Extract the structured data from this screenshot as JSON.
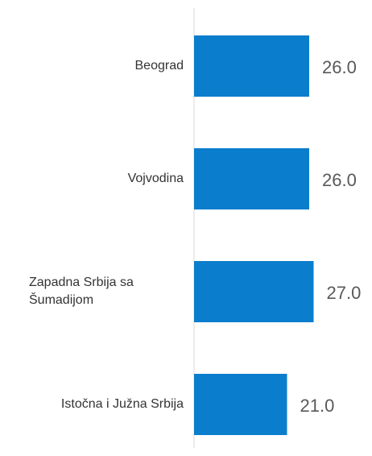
{
  "chart_data": {
    "type": "bar",
    "orientation": "horizontal",
    "categories": [
      "Beograd",
      "Vojvodina",
      "Zapadna Srbija sa Šumadijom",
      "Istočna i Južna Srbija"
    ],
    "values": [
      26,
      26,
      27,
      21
    ],
    "value_labels": [
      "26.0",
      "26.0",
      "27.0",
      "21.0"
    ],
    "color": "#0b7dcd"
  }
}
